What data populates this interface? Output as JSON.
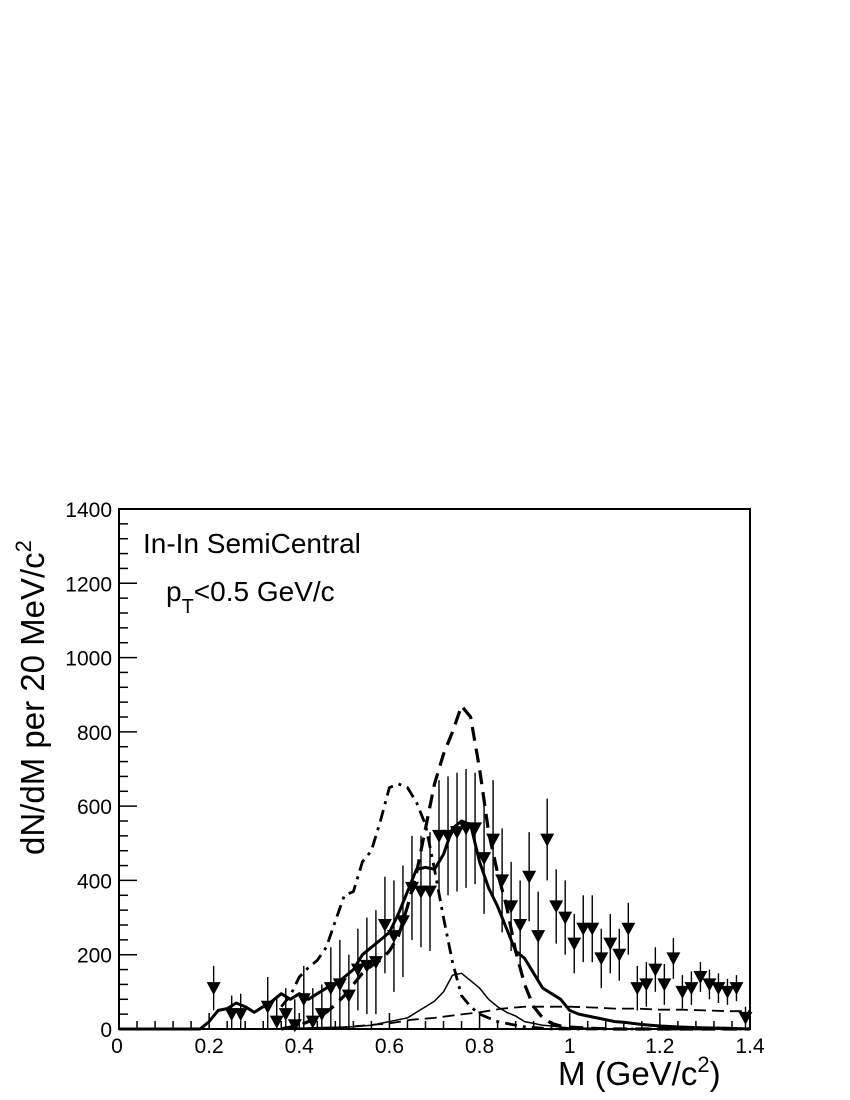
{
  "chart_data": {
    "type": "line",
    "title": "",
    "annotations": {
      "line1": "In-In SemiCentral",
      "line2_main": "p",
      "line2_sub": "T",
      "line2_rest": "<0.5 GeV/c"
    },
    "xlabel": {
      "main": "M (GeV/c",
      "sup": "2",
      "close": ")"
    },
    "ylabel": {
      "main": "dN/dM per 20 MeV/c",
      "sup": "2"
    },
    "xlim": [
      0,
      1.4
    ],
    "ylim": [
      0,
      1400
    ],
    "x_ticks": [
      0,
      0.2,
      0.4,
      0.6,
      0.8,
      1,
      1.2,
      1.4
    ],
    "x_tick_labels": [
      "0",
      "0.2",
      "0.4",
      "0.6",
      "0.8",
      "1",
      "1.2",
      "1.4"
    ],
    "y_ticks": [
      0,
      200,
      400,
      600,
      800,
      1000,
      1200,
      1400
    ],
    "y_tick_labels": [
      "0",
      "200",
      "400",
      "600",
      "800",
      "1000",
      "1200",
      "1400"
    ],
    "grid": false,
    "legend": "none",
    "data_points": {
      "marker": "filled-down-triangle",
      "x": [
        0.21,
        0.25,
        0.27,
        0.33,
        0.35,
        0.37,
        0.39,
        0.41,
        0.43,
        0.45,
        0.47,
        0.49,
        0.51,
        0.53,
        0.55,
        0.57,
        0.59,
        0.61,
        0.63,
        0.65,
        0.67,
        0.69,
        0.71,
        0.73,
        0.75,
        0.77,
        0.79,
        0.81,
        0.83,
        0.85,
        0.87,
        0.89,
        0.91,
        0.93,
        0.95,
        0.97,
        0.99,
        1.01,
        1.03,
        1.05,
        1.07,
        1.09,
        1.11,
        1.13,
        1.15,
        1.17,
        1.19,
        1.21,
        1.23,
        1.25,
        1.27,
        1.29,
        1.31,
        1.33,
        1.35,
        1.37,
        1.39
      ],
      "y": [
        110,
        40,
        40,
        60,
        20,
        40,
        10,
        80,
        20,
        40,
        110,
        120,
        90,
        160,
        170,
        180,
        280,
        250,
        290,
        380,
        370,
        370,
        520,
        520,
        530,
        540,
        540,
        460,
        510,
        400,
        330,
        280,
        410,
        250,
        510,
        330,
        300,
        230,
        270,
        270,
        190,
        230,
        200,
        270,
        110,
        120,
        160,
        120,
        190,
        100,
        110,
        140,
        120,
        110,
        100,
        110,
        30
      ],
      "err": [
        60,
        50,
        55,
        80,
        70,
        70,
        70,
        90,
        90,
        80,
        110,
        120,
        110,
        110,
        130,
        140,
        130,
        150,
        150,
        140,
        150,
        160,
        150,
        160,
        160,
        160,
        150,
        150,
        160,
        140,
        120,
        120,
        120,
        120,
        110,
        100,
        100,
        80,
        90,
        90,
        80,
        80,
        70,
        70,
        60,
        60,
        60,
        55,
        55,
        45,
        45,
        40,
        40,
        40,
        35,
        35,
        30
      ]
    },
    "series": [
      {
        "style": "thick-solid",
        "x": [
          0,
          0.18,
          0.2,
          0.22,
          0.24,
          0.26,
          0.28,
          0.3,
          0.32,
          0.34,
          0.36,
          0.38,
          0.4,
          0.42,
          0.44,
          0.46,
          0.48,
          0.5,
          0.52,
          0.54,
          0.56,
          0.58,
          0.6,
          0.62,
          0.64,
          0.66,
          0.68,
          0.7,
          0.72,
          0.74,
          0.76,
          0.78,
          0.8,
          0.82,
          0.84,
          0.86,
          0.88,
          0.9,
          0.92,
          0.94,
          0.96,
          0.98,
          1.0,
          1.02,
          1.04,
          1.06,
          1.08,
          1.1,
          1.12,
          1.14,
          1.16,
          1.18,
          1.2,
          1.25,
          1.3,
          1.35,
          1.4
        ],
        "y": [
          0,
          0,
          20,
          50,
          55,
          70,
          60,
          45,
          60,
          75,
          95,
          80,
          95,
          80,
          95,
          110,
          120,
          140,
          160,
          200,
          220,
          240,
          260,
          310,
          370,
          430,
          435,
          430,
          470,
          540,
          560,
          550,
          450,
          380,
          330,
          270,
          210,
          190,
          150,
          110,
          95,
          80,
          50,
          40,
          35,
          30,
          25,
          20,
          18,
          15,
          12,
          10,
          8,
          5,
          3,
          2,
          0
        ]
      },
      {
        "style": "thick-dashed",
        "x": [
          0.36,
          0.38,
          0.4,
          0.42,
          0.44,
          0.46,
          0.48,
          0.5,
          0.52,
          0.54,
          0.56,
          0.58,
          0.6,
          0.62,
          0.64,
          0.66,
          0.68,
          0.7,
          0.72,
          0.74,
          0.76,
          0.78,
          0.8,
          0.82,
          0.84,
          0.86,
          0.88,
          0.9,
          0.92,
          0.94,
          0.96,
          0.98,
          1.0,
          1.05,
          1.1,
          1.2,
          1.3,
          1.4
        ],
        "y": [
          0,
          5,
          10,
          20,
          30,
          45,
          65,
          90,
          120,
          150,
          170,
          185,
          210,
          250,
          330,
          420,
          540,
          660,
          740,
          800,
          870,
          840,
          700,
          530,
          420,
          330,
          210,
          120,
          60,
          30,
          15,
          8,
          5,
          2,
          0,
          0,
          0,
          0
        ]
      },
      {
        "style": "dash-dot",
        "x": [
          0.36,
          0.38,
          0.4,
          0.42,
          0.44,
          0.46,
          0.48,
          0.5,
          0.52,
          0.54,
          0.56,
          0.58,
          0.6,
          0.62,
          0.64,
          0.66,
          0.68,
          0.7,
          0.72,
          0.74,
          0.76,
          0.78,
          0.8,
          0.82,
          0.84,
          0.86,
          0.88,
          0.9,
          0.92,
          0.94,
          0.96,
          0.98,
          1.0,
          1.05,
          1.1,
          1.2,
          1.3,
          1.4
        ],
        "y": [
          60,
          90,
          140,
          165,
          185,
          220,
          290,
          360,
          370,
          450,
          480,
          560,
          650,
          660,
          650,
          610,
          550,
          430,
          300,
          180,
          90,
          60,
          40,
          30,
          20,
          15,
          10,
          6,
          4,
          2,
          0,
          0,
          0,
          0,
          0,
          0,
          0,
          0
        ]
      },
      {
        "style": "thin-solid",
        "x": [
          0.3,
          0.35,
          0.4,
          0.45,
          0.5,
          0.52,
          0.54,
          0.56,
          0.58,
          0.6,
          0.62,
          0.64,
          0.66,
          0.68,
          0.7,
          0.72,
          0.74,
          0.76,
          0.78,
          0.8,
          0.82,
          0.84,
          0.86,
          0.88,
          0.9,
          0.92,
          0.94,
          0.96,
          0.98,
          1.0,
          1.05,
          1.1,
          1.2,
          1.3,
          1.4
        ],
        "y": [
          0,
          0,
          2,
          4,
          5,
          6,
          8,
          10,
          15,
          20,
          25,
          30,
          45,
          60,
          75,
          100,
          145,
          150,
          130,
          110,
          80,
          60,
          45,
          35,
          20,
          15,
          10,
          8,
          5,
          3,
          2,
          0,
          0,
          0,
          0
        ]
      },
      {
        "style": "thin-dashed",
        "x": [
          0.4,
          0.45,
          0.5,
          0.55,
          0.6,
          0.65,
          0.7,
          0.75,
          0.8,
          0.85,
          0.9,
          0.95,
          1.0,
          1.05,
          1.1,
          1.15,
          1.2,
          1.25,
          1.3,
          1.35,
          1.4
        ],
        "y": [
          0,
          2,
          5,
          10,
          15,
          25,
          30,
          38,
          45,
          55,
          60,
          60,
          60,
          58,
          55,
          55,
          52,
          52,
          50,
          48,
          48
        ]
      }
    ]
  }
}
